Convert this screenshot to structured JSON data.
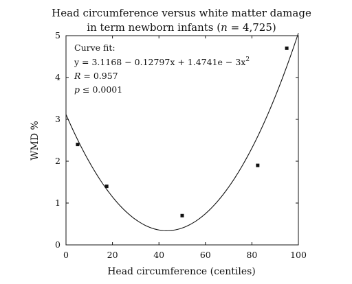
{
  "chart_data": {
    "type": "scatter",
    "title_line1": "Head circumference versus white matter damage",
    "title_line2_prefix": "in term newborn infants (",
    "title_line2_italic": "n",
    "title_line2_suffix": " = 4,725)",
    "xlabel": "Head circumference (centiles)",
    "ylabel": "WMD %",
    "xlim": [
      0,
      100
    ],
    "ylim": [
      0,
      5
    ],
    "xticks": [
      0,
      20,
      40,
      60,
      80,
      100
    ],
    "yticks": [
      0,
      1,
      2,
      3,
      4,
      5
    ],
    "grid": false,
    "points": [
      {
        "x": 5,
        "y": 2.4
      },
      {
        "x": 17.5,
        "y": 1.4
      },
      {
        "x": 50,
        "y": 0.7
      },
      {
        "x": 82.5,
        "y": 1.9
      },
      {
        "x": 95,
        "y": 4.7
      }
    ],
    "curve_fit": {
      "heading": "Curve fit:",
      "equation_main": "y = 3.1168 − 0.12797x + 1.4741e − 3x",
      "equation_superscript": "2",
      "r_label": "R",
      "r_value": "= 0.957",
      "p_label": "p",
      "p_value": "≤ 0.0001",
      "coefficients": [
        3.1168,
        -0.12797,
        0.0014741
      ]
    }
  }
}
